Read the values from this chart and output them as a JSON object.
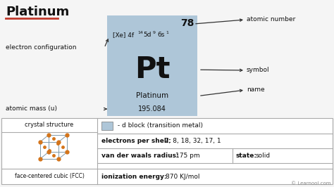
{
  "title": "Platinum",
  "title_underline_color": "#c0392b",
  "bg_color": "#f5f5f5",
  "element_box_color": "#aec6d8",
  "atomic_number": "78",
  "symbol": "Pt",
  "name": "Platinum",
  "atomic_mass": "195.084",
  "label_atomic_number": "atomic number",
  "label_electron_config": "electron configuration",
  "label_symbol": "symbol",
  "label_name": "name",
  "label_atomic_mass": "atomic mass (u)",
  "arrow_color": "#333333",
  "text_color": "#111111",
  "table_border_color": "#aaaaaa",
  "dblock_color": "#aec6d8",
  "dblock_text": " - d block (transition metal)",
  "electrons_label": "electrons per shell:",
  "electrons_value": "2, 8, 18, 32, 17, 1",
  "vdw_label": "van der waals radius:",
  "vdw_value": "175 pm",
  "state_label": "state:",
  "state_value": "solid",
  "ion_label": "ionization energy:",
  "ion_value": "870 KJ/mol",
  "fcc_label": "face-centered cubic (FCC)",
  "crystal_label": "crystal structure",
  "learnool": "© Learnool.com",
  "orange": "#d4741a",
  "cube_line_color": "#8099aa"
}
